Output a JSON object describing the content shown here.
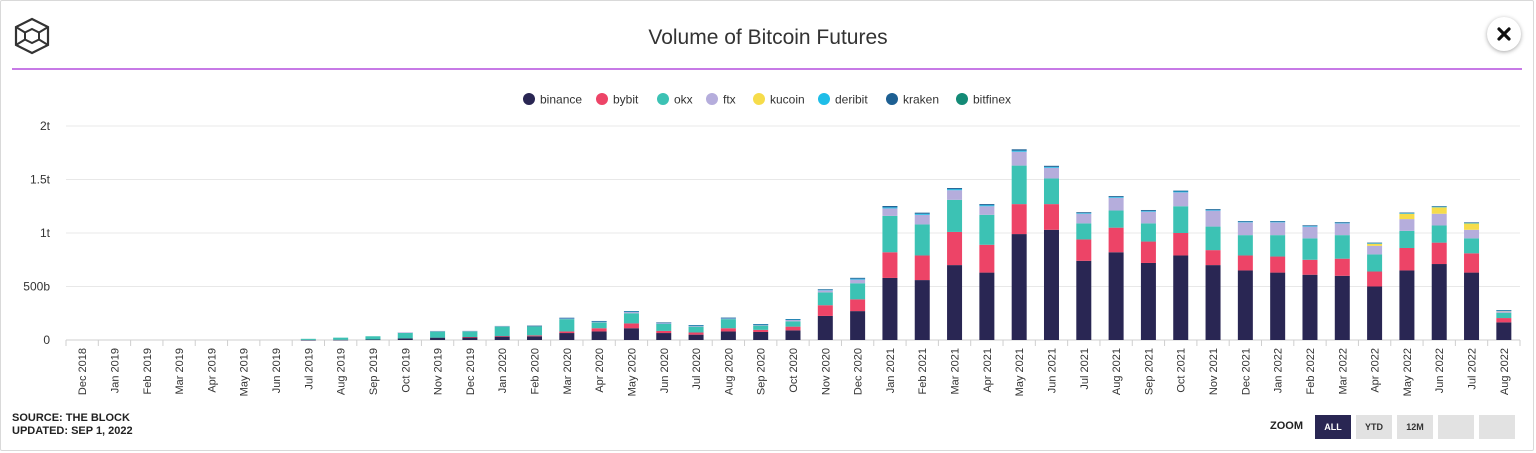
{
  "title": "Volume of Bitcoin Futures",
  "source_line": "SOURCE: THE BLOCK",
  "updated_line": "UPDATED: SEP 1, 2022",
  "zoom": {
    "label": "ZOOM",
    "buttons": [
      {
        "label": "ALL",
        "active": true
      },
      {
        "label": "YTD",
        "active": false
      },
      {
        "label": "12M",
        "active": false
      },
      {
        "label": "",
        "active": false
      },
      {
        "label": "",
        "active": false
      }
    ]
  },
  "icons": {
    "logo": "the-block-logo-icon",
    "close": "close-icon"
  },
  "colors": {
    "binance": "#292653",
    "bybit": "#ed4467",
    "okx": "#3cc2b4",
    "ftx": "#b5addc",
    "kucoin": "#f6dc4a",
    "deribit": "#1ebde8",
    "kraken": "#1d5f92",
    "bitfinex": "#138a76",
    "accent_line": "#c77ae6",
    "zoom_active": "#292653"
  },
  "chart_data": {
    "type": "bar",
    "stacked": true,
    "title": "Volume of Bitcoin Futures",
    "xlabel": "",
    "ylabel": "",
    "ylim": [
      0,
      2000000000000
    ],
    "y_ticks": [
      {
        "value": 0,
        "label": "0"
      },
      {
        "value": 500000000000,
        "label": "500b"
      },
      {
        "value": 1000000000000,
        "label": "1t"
      },
      {
        "value": 1500000000000,
        "label": "1.5t"
      },
      {
        "value": 2000000000000,
        "label": "2t"
      }
    ],
    "grid": true,
    "legend_position": "top-center",
    "categories": [
      "Dec 2018",
      "Jan 2019",
      "Feb 2019",
      "Mar 2019",
      "Apr 2019",
      "May 2019",
      "Jun 2019",
      "Jul 2019",
      "Aug 2019",
      "Sep 2019",
      "Oct 2019",
      "Nov 2019",
      "Dec 2019",
      "Jan 2020",
      "Feb 2020",
      "Mar 2020",
      "Apr 2020",
      "May 2020",
      "Jun 2020",
      "Jul 2020",
      "Aug 2020",
      "Sep 2020",
      "Oct 2020",
      "Nov 2020",
      "Dec 2020",
      "Jan 2021",
      "Feb 2021",
      "Mar 2021",
      "Apr 2021",
      "May 2021",
      "Jun 2021",
      "Jul 2021",
      "Aug 2021",
      "Sep 2021",
      "Oct 2021",
      "Nov 2021",
      "Dec 2021",
      "Jan 2022",
      "Feb 2022",
      "Mar 2022",
      "Apr 2022",
      "May 2022",
      "Jun 2022",
      "Jul 2022",
      "Aug 2022"
    ],
    "unit_scale": 1000000000,
    "series": [
      {
        "name": "binance",
        "values": [
          0,
          0,
          0,
          0,
          0,
          0,
          0,
          1,
          2,
          5,
          15,
          22,
          25,
          32,
          35,
          65,
          80,
          110,
          65,
          50,
          80,
          75,
          90,
          225,
          270,
          580,
          560,
          700,
          630,
          990,
          1030,
          740,
          820,
          720,
          790,
          700,
          650,
          630,
          610,
          600,
          500,
          650,
          710,
          630,
          165
        ]
      },
      {
        "name": "bybit",
        "values": [
          0,
          0,
          0,
          0,
          0,
          0,
          0,
          0,
          0,
          0,
          0,
          0,
          3,
          5,
          8,
          15,
          30,
          45,
          20,
          20,
          30,
          20,
          35,
          100,
          110,
          240,
          230,
          310,
          260,
          280,
          240,
          200,
          230,
          200,
          210,
          140,
          140,
          150,
          140,
          160,
          140,
          210,
          200,
          180,
          40
        ]
      },
      {
        "name": "okx",
        "values": [
          0,
          0,
          0,
          0,
          0,
          0,
          0,
          10,
          20,
          30,
          55,
          60,
          55,
          90,
          85,
          115,
          55,
          95,
          65,
          55,
          85,
          40,
          50,
          120,
          150,
          340,
          290,
          300,
          280,
          360,
          240,
          150,
          160,
          170,
          250,
          220,
          190,
          200,
          200,
          220,
          160,
          160,
          160,
          140,
          50
        ]
      },
      {
        "name": "ftx",
        "values": [
          0,
          0,
          0,
          0,
          0,
          0,
          0,
          0,
          0,
          0,
          1,
          3,
          3,
          5,
          5,
          10,
          10,
          15,
          10,
          10,
          10,
          10,
          15,
          20,
          35,
          70,
          90,
          90,
          80,
          130,
          100,
          90,
          120,
          110,
          130,
          150,
          120,
          120,
          110,
          110,
          80,
          110,
          110,
          80,
          15
        ]
      },
      {
        "name": "kucoin",
        "values": [
          0,
          0,
          0,
          0,
          0,
          0,
          0,
          0,
          0,
          0,
          0,
          0,
          0,
          0,
          0,
          0,
          0,
          0,
          0,
          0,
          0,
          0,
          0,
          0,
          0,
          0,
          0,
          0,
          0,
          0,
          0,
          0,
          0,
          0,
          0,
          0,
          0,
          0,
          0,
          0,
          20,
          50,
          60,
          60,
          5
        ]
      },
      {
        "name": "deribit",
        "values": [
          0,
          0,
          0,
          0,
          0,
          0,
          0,
          0,
          0,
          0,
          0,
          0,
          0,
          0,
          0,
          1,
          1,
          2,
          2,
          2,
          2,
          2,
          3,
          5,
          8,
          10,
          10,
          10,
          10,
          10,
          8,
          6,
          7,
          7,
          8,
          7,
          6,
          6,
          6,
          6,
          5,
          6,
          6,
          5,
          2
        ]
      },
      {
        "name": "kraken",
        "values": [
          0,
          0,
          0,
          0,
          0,
          0,
          0,
          0,
          0,
          0,
          0,
          0,
          0,
          0,
          1,
          2,
          2,
          3,
          2,
          2,
          2,
          2,
          3,
          5,
          8,
          12,
          10,
          10,
          10,
          12,
          10,
          8,
          8,
          8,
          8,
          7,
          6,
          6,
          6,
          6,
          5,
          5,
          5,
          4,
          2
        ]
      },
      {
        "name": "bitfinex",
        "values": [
          0,
          0,
          0,
          0,
          0,
          0,
          0,
          0,
          0,
          0,
          0,
          0,
          0,
          0,
          0,
          0,
          0,
          0,
          0,
          0,
          0,
          0,
          0,
          0,
          0,
          0,
          0,
          0,
          0,
          0,
          0,
          0,
          0,
          0,
          0,
          0,
          0,
          0,
          0,
          0,
          0,
          0,
          0,
          0,
          0
        ]
      }
    ]
  }
}
